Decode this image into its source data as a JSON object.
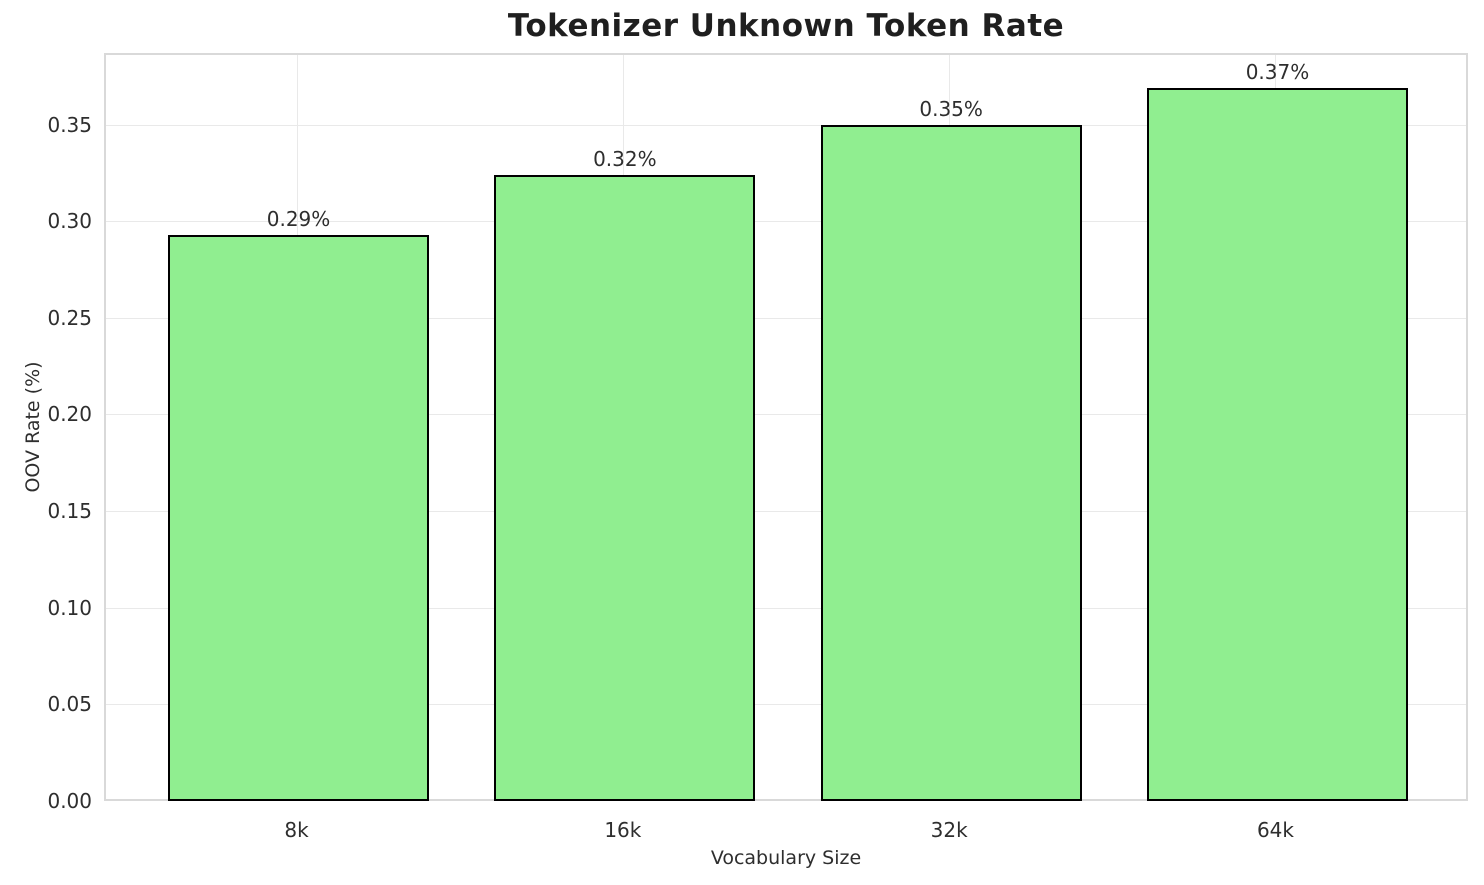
{
  "chart_data": {
    "type": "bar",
    "title": "Tokenizer Unknown Token Rate",
    "xlabel": "Vocabulary Size",
    "ylabel": "OOV Rate (%)",
    "categories": [
      "8k",
      "16k",
      "32k",
      "64k"
    ],
    "values": [
      0.293,
      0.324,
      0.35,
      0.369
    ],
    "bar_labels": [
      "0.29%",
      "0.32%",
      "0.35%",
      "0.37%"
    ],
    "yticks": [
      0.0,
      0.05,
      0.1,
      0.15,
      0.2,
      0.25,
      0.3,
      0.35
    ],
    "ytick_labels": [
      "0.00",
      "0.05",
      "0.10",
      "0.15",
      "0.20",
      "0.25",
      "0.30",
      "0.35"
    ],
    "ylim": [
      0,
      0.387
    ],
    "grid": true,
    "legend": null,
    "colors": {
      "bar_fill": "#90EE90",
      "bar_edge": "#000000",
      "grid_line": "#e9e9e9",
      "spine": "#d9d9d9",
      "title_text": "#1f1f1f",
      "tick_text": "#2e2e2e",
      "background": "#ffffff"
    }
  }
}
